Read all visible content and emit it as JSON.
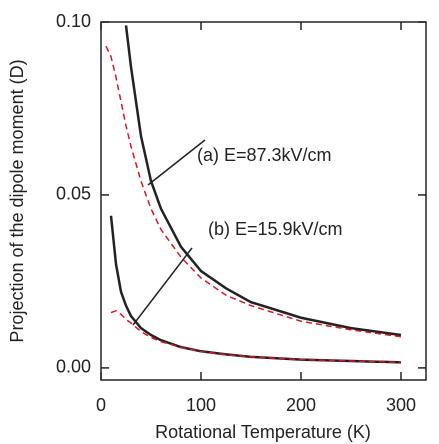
{
  "chart_data": {
    "type": "line",
    "x_label": "Rotational Temperature (K)",
    "y_label": "Projection of the dipole moment (D)",
    "x": [
      5,
      10,
      15,
      20,
      25,
      30,
      40,
      50,
      60,
      80,
      100,
      125,
      150,
      200,
      250,
      300
    ],
    "series": [
      {
        "color": "#222222",
        "line_style": "solid",
        "values": [
          null,
          null,
          null,
          null,
          0.099,
          0.087,
          0.067,
          0.054,
          0.046,
          0.035,
          0.028,
          0.023,
          0.019,
          0.0145,
          0.0115,
          0.0095
        ]
      },
      {
        "color": "#e0141e",
        "line_style": "dashed",
        "values": [
          0.093,
          0.09,
          0.084,
          0.077,
          0.07,
          0.064,
          0.054,
          0.046,
          0.04,
          0.032,
          0.026,
          0.021,
          0.018,
          0.0135,
          0.011,
          0.009
        ]
      },
      {
        "color": "#222222",
        "line_style": "solid",
        "values": [
          null,
          0.044,
          0.03,
          0.022,
          0.018,
          0.015,
          0.0115,
          0.0095,
          0.008,
          0.006,
          0.0048,
          0.0039,
          0.0032,
          0.0024,
          0.002,
          0.0016
        ]
      },
      {
        "color": "#e0141e",
        "line_style": "dashed",
        "values": [
          null,
          0.016,
          0.0165,
          0.0155,
          0.014,
          0.013,
          0.0105,
          0.0088,
          0.0076,
          0.0059,
          0.0047,
          0.0038,
          0.0032,
          0.0024,
          0.002,
          0.0016
        ]
      }
    ],
    "annotations": [
      "(a) E=87.3kV/cm",
      "(b) E=15.9kV/cm"
    ],
    "xlim": [
      0,
      325
    ],
    "xticks": [
      0,
      100,
      200,
      300
    ],
    "ylim": [
      -0.0035,
      0.1
    ],
    "yticks": [
      {
        "value": 0,
        "label": "0.00"
      },
      {
        "value": 0.05,
        "label": "0.05"
      },
      {
        "value": 0.1,
        "label": "0.10"
      }
    ],
    "grid": false
  }
}
